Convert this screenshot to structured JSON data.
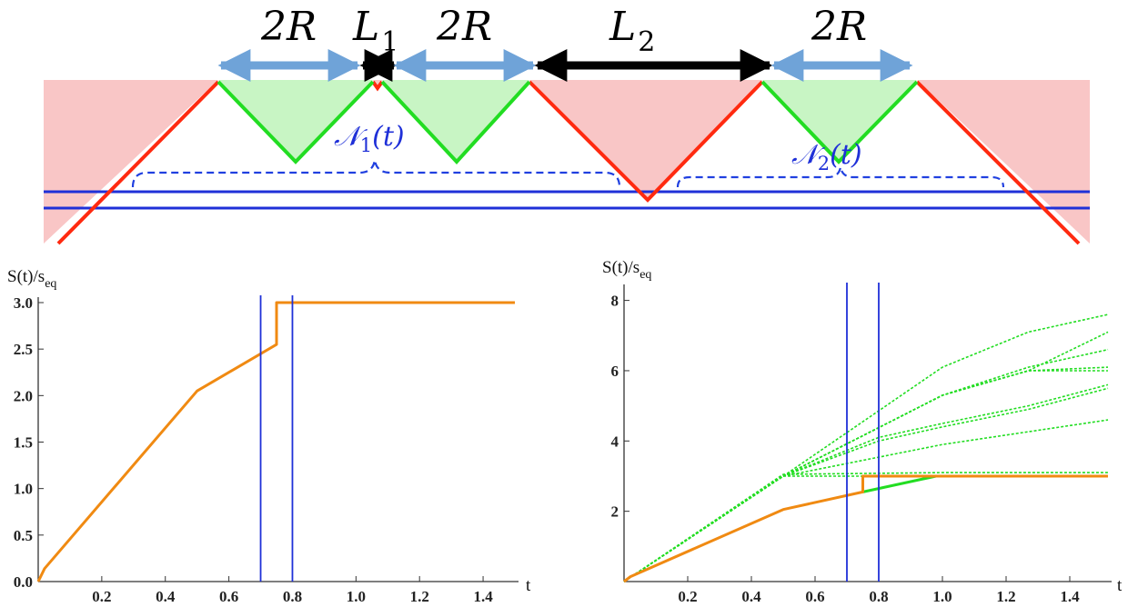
{
  "top_diagram": {
    "labels": {
      "w1": "2R",
      "l1_base": "L",
      "l1_sub": "1",
      "w2": "2R",
      "l2_base": "L",
      "l2_sub": "2",
      "w3": "2R",
      "n1_base": "𝒩",
      "n1_sub": "1",
      "n1_arg": "(t)",
      "n2_base": "𝒩",
      "n2_sub": "2",
      "n2_arg": "(t)"
    },
    "colors": {
      "shade_red": "#f9c6c6",
      "shade_green": "#c8f5c4",
      "line_red": "#ff2a10",
      "line_green": "#22dd22",
      "arrow_blue": "#6fa3d8",
      "arrow_black": "#000000",
      "line_blue": "#1f30d8",
      "brace_blue": "#2040e0"
    }
  },
  "chart_data": [
    {
      "type": "line",
      "ylabel_base": "S(t)/s",
      "ylabel_sub": "eq",
      "xlabel": "t",
      "xlim": [
        0,
        1.5
      ],
      "ylim": [
        0,
        3.0
      ],
      "xticks": [
        "0.2",
        "0.4",
        "0.6",
        "0.8",
        "1.0",
        "1.2",
        "1.4"
      ],
      "xtick_values": [
        0.2,
        0.4,
        0.6,
        0.8,
        1.0,
        1.2,
        1.4
      ],
      "yticks": [
        "0.0",
        "0.5",
        "1.0",
        "1.5",
        "2.0",
        "2.5",
        "3.0"
      ],
      "ytick_values": [
        0,
        0.5,
        1.0,
        1.5,
        2.0,
        2.5,
        3.0
      ],
      "series": [
        {
          "color": "#f08a12",
          "style": "solid",
          "x": [
            0,
            0.02,
            0.5,
            0.75,
            0.75,
            1.5
          ],
          "y": [
            0,
            0.14,
            2.05,
            2.55,
            3.0,
            3.0
          ]
        }
      ],
      "vlines": [
        0.7,
        0.8
      ],
      "vline_color": "#1f30d8"
    },
    {
      "type": "line",
      "ylabel_base": "S(t)/s",
      "ylabel_sub": "eq",
      "xlabel": "t",
      "xlim": [
        0,
        1.52
      ],
      "ylim": [
        0,
        8.3
      ],
      "xticks": [
        "0.2",
        "0.4",
        "0.6",
        "0.8",
        "1.0",
        "1.2",
        "1.4"
      ],
      "xtick_values": [
        0.2,
        0.4,
        0.6,
        0.8,
        1.0,
        1.2,
        1.4
      ],
      "yticks": [
        "2",
        "4",
        "6",
        "8"
      ],
      "ytick_values": [
        2,
        4,
        6,
        8
      ],
      "series": [
        {
          "color": "#22dd22",
          "style": "dashed",
          "x": [
            0,
            0.5,
            1.0,
            1.27,
            1.52
          ],
          "y": [
            0,
            3.0,
            6.1,
            7.1,
            7.6
          ]
        },
        {
          "color": "#22dd22",
          "style": "dashed",
          "x": [
            0,
            0.5,
            1.0,
            1.27,
            1.52
          ],
          "y": [
            0,
            3.0,
            5.3,
            6.0,
            7.1
          ]
        },
        {
          "color": "#22dd22",
          "style": "dashed",
          "x": [
            0,
            0.5,
            1.0,
            1.27,
            1.52
          ],
          "y": [
            0,
            3.0,
            5.3,
            6.1,
            6.6
          ]
        },
        {
          "color": "#22dd22",
          "style": "dashed",
          "x": [
            0,
            0.5,
            1.0,
            1.27,
            1.52
          ],
          "y": [
            0,
            3.0,
            5.3,
            6.0,
            6.1
          ]
        },
        {
          "color": "#22dd22",
          "style": "dashed",
          "x": [
            0,
            0.5,
            1.0,
            1.27,
            1.52
          ],
          "y": [
            0,
            3.0,
            5.3,
            6.0,
            6.0
          ]
        },
        {
          "color": "#22dd22",
          "style": "dashed",
          "x": [
            0,
            0.5,
            0.8,
            1.0,
            1.27,
            1.52
          ],
          "y": [
            0,
            3.0,
            4.1,
            4.5,
            5.0,
            5.6
          ]
        },
        {
          "color": "#22dd22",
          "style": "dashed",
          "x": [
            0,
            0.5,
            0.8,
            1.0,
            1.27,
            1.52
          ],
          "y": [
            0,
            3.0,
            4.0,
            4.4,
            4.9,
            5.5
          ]
        },
        {
          "color": "#22dd22",
          "style": "dashed",
          "x": [
            0,
            0.5,
            1.0,
            1.52
          ],
          "y": [
            0,
            3.0,
            3.9,
            4.6
          ]
        },
        {
          "color": "#22dd22",
          "style": "dashed",
          "x": [
            0,
            0.5,
            1.0,
            1.52
          ],
          "y": [
            0,
            3.05,
            3.1,
            3.1
          ]
        },
        {
          "color": "#22dd22",
          "style": "dashed",
          "x": [
            0,
            0.5,
            1.0,
            1.52
          ],
          "y": [
            0,
            3.0,
            3.0,
            3.0
          ]
        },
        {
          "color": "#22dd22",
          "style": "solid",
          "x": [
            0.75,
            0.98,
            1.52
          ],
          "y": [
            2.55,
            3.0,
            3.0
          ]
        },
        {
          "color": "#f08a12",
          "style": "solid",
          "x": [
            0,
            0.02,
            0.5,
            0.75,
            0.75,
            1.52
          ],
          "y": [
            0,
            0.14,
            2.05,
            2.55,
            3.0,
            3.0
          ]
        }
      ],
      "vlines": [
        0.7,
        0.8
      ],
      "vline_color": "#1f30d8"
    }
  ]
}
